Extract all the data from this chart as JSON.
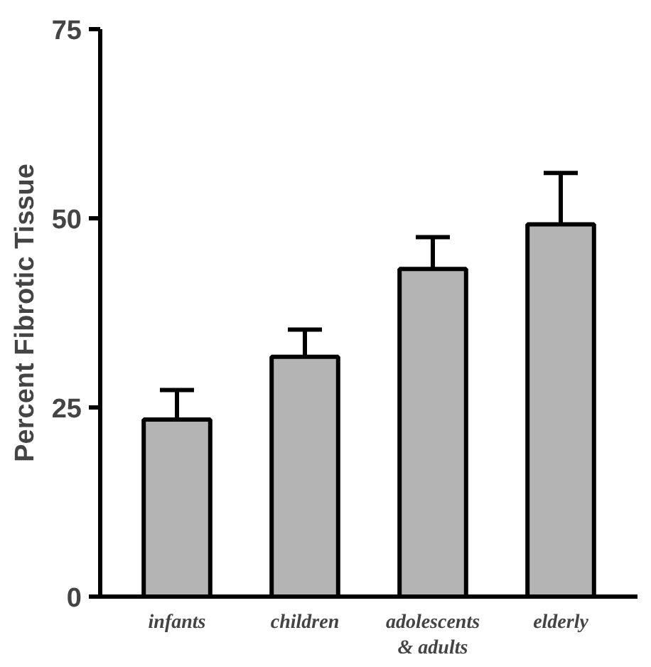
{
  "chart_data": {
    "type": "bar",
    "ylabel": "Percent Fibrotic Tissue",
    "categories": [
      "infants",
      "children",
      "adolescents\n& adults",
      "elderly"
    ],
    "values": [
      23.4,
      31.7,
      43.3,
      49.2
    ],
    "errors": [
      [
        23.4,
        27.3
      ],
      [
        31.7,
        35.3
      ],
      [
        43.3,
        47.5
      ],
      [
        49.2,
        56
      ]
    ],
    "color": "#b4b4b4",
    "ylim": [
      0,
      75
    ],
    "yticks": [
      0,
      25,
      50,
      75
    ],
    "grid": false
  }
}
